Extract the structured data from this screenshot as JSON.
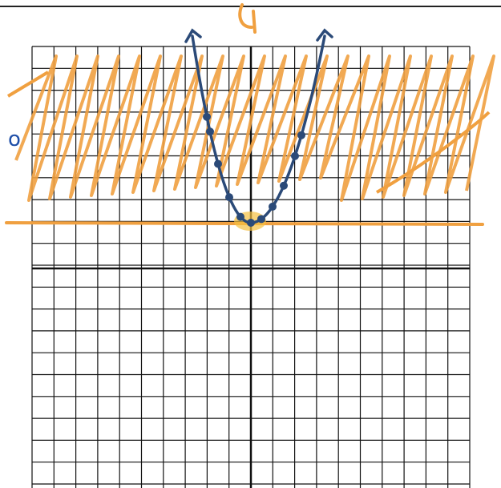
{
  "annotation": "o"
}
